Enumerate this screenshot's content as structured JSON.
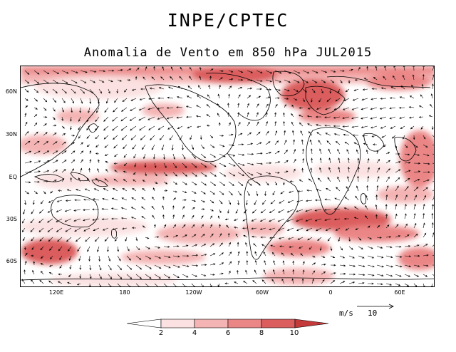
{
  "header": {
    "title": "INPE/CPTEC",
    "subtitle": "Anomalia de Vento em 850 hPa JUL2015"
  },
  "map": {
    "lat_labels": [
      "60N",
      "30N",
      "EQ",
      "30S",
      "60S"
    ],
    "lon_labels": [
      "120E",
      "180",
      "120W",
      "60W",
      "0",
      "60E"
    ],
    "coastline_color": "#000000"
  },
  "reference_vector": {
    "unit": "m/s",
    "value": "10"
  },
  "colorbar": {
    "labels": [
      "2",
      "4",
      "6",
      "8",
      "10"
    ],
    "colors": [
      "#ffffff",
      "#fbe1e1",
      "#f4b4b4",
      "#eb8686",
      "#db5d5d",
      "#c43a3a"
    ]
  }
}
